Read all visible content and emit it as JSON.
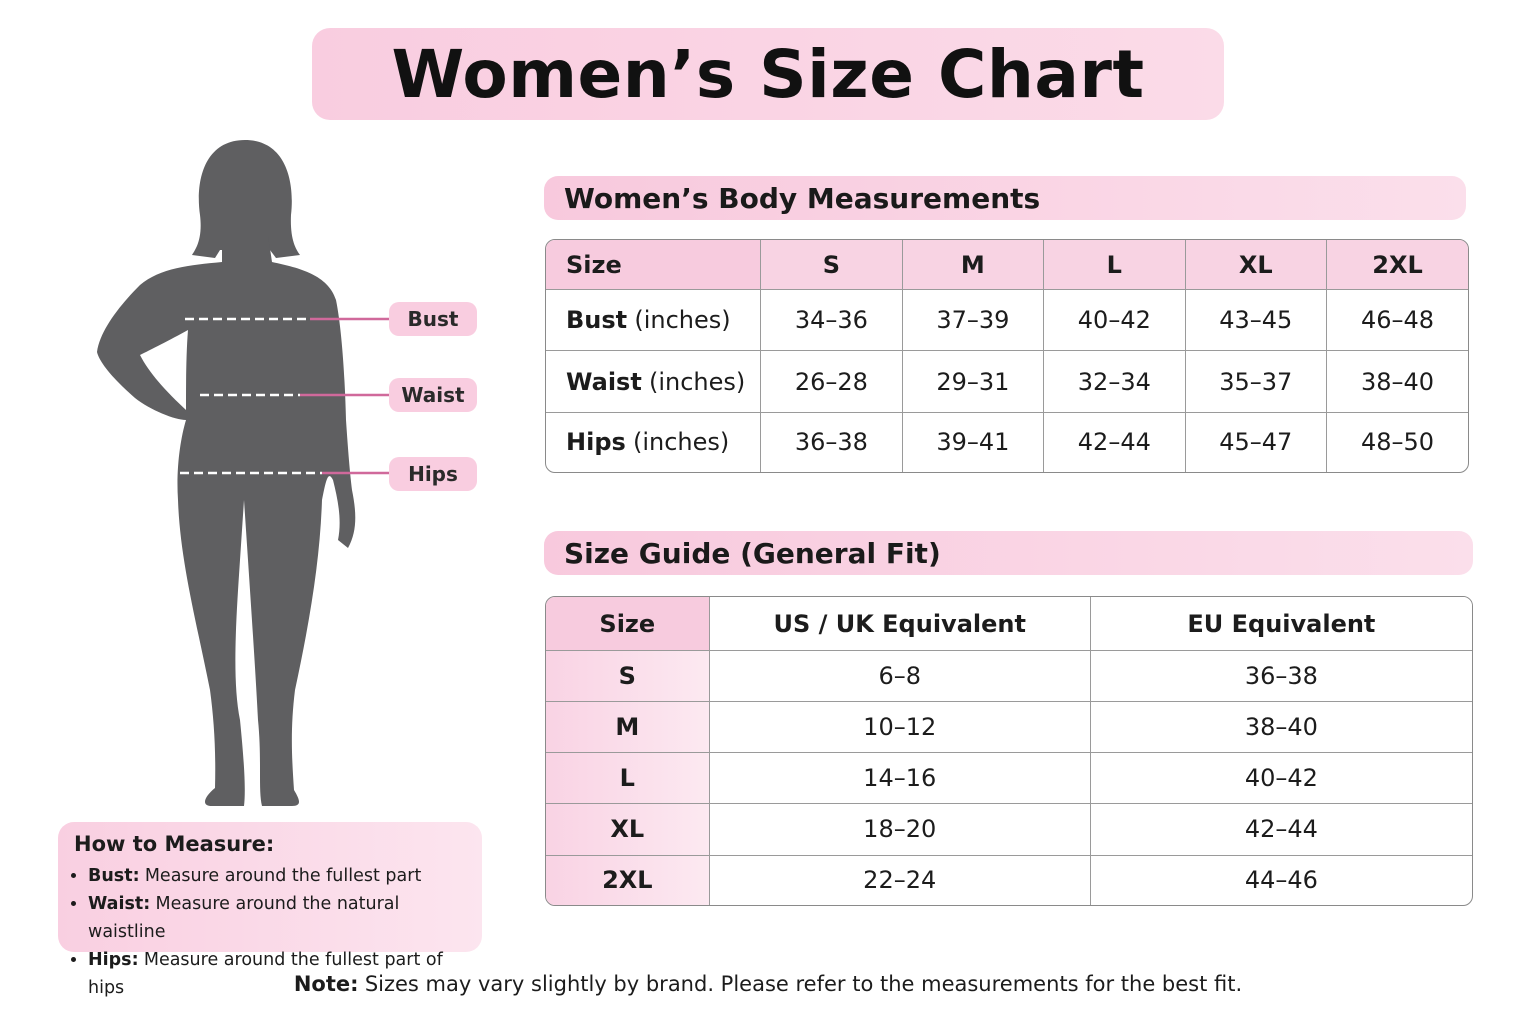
{
  "title": "Women’s Size Chart",
  "figure_labels": [
    "Bust",
    "Waist",
    "Hips"
  ],
  "measurements": {
    "title": "Women’s Body Measurements",
    "header": [
      "Size",
      "S",
      "M",
      "L",
      "XL",
      "2XL"
    ],
    "rows": [
      {
        "label": "Bust",
        "unit": "(inches)",
        "values": [
          "34–36",
          "37–39",
          "40–42",
          "43–45",
          "46–48"
        ]
      },
      {
        "label": "Waist",
        "unit": "(inches)",
        "values": [
          "26–28",
          "29–31",
          "32–34",
          "35–37",
          "38–40"
        ]
      },
      {
        "label": "Hips",
        "unit": "(inches)",
        "values": [
          "36–38",
          "39–41",
          "42–44",
          "45–47",
          "48–50"
        ]
      }
    ]
  },
  "guide": {
    "title": "Size Guide (General Fit)",
    "header": [
      "Size",
      "US / UK Equivalent",
      "EU Equivalent"
    ],
    "rows": [
      [
        "S",
        "6–8",
        "36–38"
      ],
      [
        "M",
        "10–12",
        "38–40"
      ],
      [
        "L",
        "14–16",
        "40–42"
      ],
      [
        "XL",
        "18–20",
        "42–44"
      ],
      [
        "2XL",
        "22–24",
        "44–46"
      ]
    ]
  },
  "how_to": {
    "title": "How to Measure:",
    "items": [
      {
        "term": "Bust:",
        "text": "Measure around the fullest part"
      },
      {
        "term": "Waist:",
        "text": "Measure around the natural waistline"
      },
      {
        "term": "Hips:",
        "text": "Measure around the fullest part of hips"
      }
    ]
  },
  "note": {
    "term": "Note:",
    "text": "Sizes may vary slightly by brand. Please refer to the measurements for the best fit."
  }
}
